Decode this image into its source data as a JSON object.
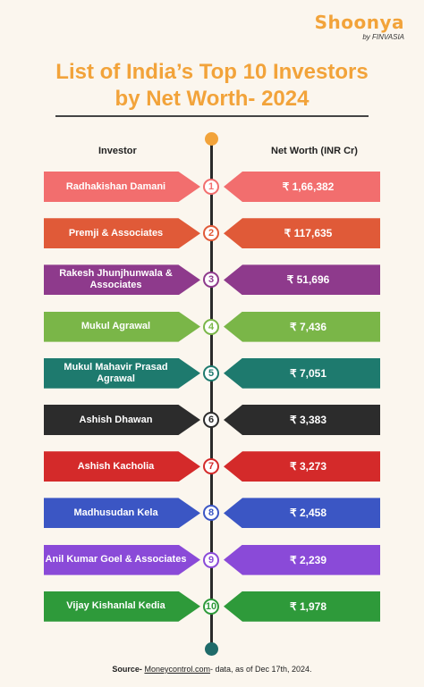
{
  "logo": {
    "brand": "Shoonya",
    "sub": "by FINVASIA"
  },
  "title_line1": "List of India’s Top 10 Investors",
  "title_line2": "by Net Worth- 2024",
  "columns": {
    "investor": "Investor",
    "net_worth": "Net Worth (INR Cr)"
  },
  "chart_data": {
    "type": "table",
    "title": "List of India’s Top 10 Investors by Net Worth- 2024",
    "columns": [
      "Investor",
      "Net Worth (INR Cr)"
    ],
    "rows": [
      {
        "rank": "1",
        "investor": "Radhakishan Damani",
        "display": "₹ 1,66,382",
        "value": 166382,
        "color": "#f26e6e"
      },
      {
        "rank": "2",
        "investor": "Premji & Associates",
        "display": "₹ 117,635",
        "value": 117635,
        "color": "#e05a38"
      },
      {
        "rank": "3",
        "investor": "Rakesh Jhunjhunwala & Associates",
        "display": "₹ 51,696",
        "value": 51696,
        "color": "#8e3a8c"
      },
      {
        "rank": "4",
        "investor": "Mukul Agrawal",
        "display": "₹ 7,436",
        "value": 7436,
        "color": "#7ab648"
      },
      {
        "rank": "5",
        "investor": "Mukul Mahavir Prasad Agrawal",
        "display": "₹ 7,051",
        "value": 7051,
        "color": "#1e7a6e"
      },
      {
        "rank": "6",
        "investor": "Ashish Dhawan",
        "display": "₹ 3,383",
        "value": 3383,
        "color": "#2c2c2c"
      },
      {
        "rank": "7",
        "investor": "Ashish Kacholia",
        "display": "₹ 3,273",
        "value": 3273,
        "color": "#d42a2a"
      },
      {
        "rank": "8",
        "investor": "Madhusudan Kela",
        "display": "₹ 2,458",
        "value": 2458,
        "color": "#3b56c4"
      },
      {
        "rank": "9",
        "investor": "Anil Kumar Goel & Associates",
        "display": "₹ 2,239",
        "value": 2239,
        "color": "#8a4ad8"
      },
      {
        "rank": "10",
        "investor": "Vijay Kishanlal Kedia",
        "display": "₹ 1,978",
        "value": 1978,
        "color": "#2e9a3a"
      }
    ]
  },
  "source": {
    "label": "Source-",
    "site": "Moneycontrol.com",
    "rest": "- data, as of Dec 17th, 2024."
  }
}
